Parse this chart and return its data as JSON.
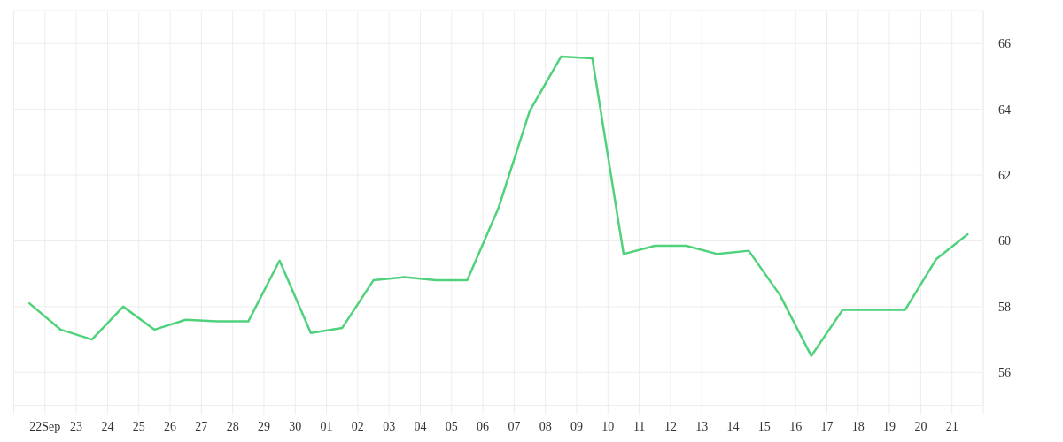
{
  "chart_data": {
    "type": "line",
    "x": [
      "--09-21T12:00",
      "--09-22T12:00",
      "--09-23T12:00",
      "--09-24T12:00",
      "--09-25T12:00",
      "--09-26T12:00",
      "--09-27T12:00",
      "--09-28T12:00",
      "--09-29T12:00",
      "--09-30T12:00",
      "--10-01T12:00",
      "--10-02T12:00",
      "--10-03T12:00",
      "--10-04T12:00",
      "--10-05T12:00",
      "--10-06T12:00",
      "--10-07T12:00",
      "--10-08T12:00",
      "--10-09T12:00",
      "--10-10T12:00",
      "--10-11T12:00",
      "--10-12T12:00",
      "--10-13T12:00",
      "--10-14T12:00",
      "--10-15T12:00",
      "--10-16T12:00",
      "--10-17T12:00",
      "--10-18T12:00",
      "--10-19T12:00",
      "--10-20T12:00",
      "--10-21T12:00"
    ],
    "values": [
      58.1,
      57.3,
      57.0,
      58.0,
      57.3,
      57.6,
      57.55,
      57.55,
      59.4,
      57.2,
      57.35,
      58.8,
      58.9,
      58.8,
      58.8,
      61.0,
      63.95,
      65.6,
      65.55,
      59.6,
      59.85,
      59.85,
      59.6,
      59.7,
      58.35,
      56.5,
      57.9,
      57.9,
      57.9,
      59.45,
      60.2
    ],
    "color": "#4fd27b",
    "xlim": [
      "--09-21",
      "--10-22"
    ],
    "ylim": [
      55,
      67
    ],
    "xticks": [
      {
        "value": "--09-21",
        "label": null
      },
      {
        "value": "--09-22",
        "label": "22Sep"
      },
      {
        "value": "--09-23",
        "label": "23"
      },
      {
        "value": "--09-24",
        "label": "24"
      },
      {
        "value": "--09-25",
        "label": "25"
      },
      {
        "value": "--09-26",
        "label": "26"
      },
      {
        "value": "--09-27",
        "label": "27"
      },
      {
        "value": "--09-28",
        "label": "28"
      },
      {
        "value": "--09-29",
        "label": "29"
      },
      {
        "value": "--09-30",
        "label": "30"
      },
      {
        "value": "--10-01",
        "label": "01"
      },
      {
        "value": "--10-02",
        "label": "02"
      },
      {
        "value": "--10-03",
        "label": "03"
      },
      {
        "value": "--10-04",
        "label": "04"
      },
      {
        "value": "--10-05",
        "label": "05"
      },
      {
        "value": "--10-06",
        "label": "06"
      },
      {
        "value": "--10-07",
        "label": "07"
      },
      {
        "value": "--10-08",
        "label": "08"
      },
      {
        "value": "--10-09",
        "label": "09"
      },
      {
        "value": "--10-10",
        "label": "10"
      },
      {
        "value": "--10-11",
        "label": "11"
      },
      {
        "value": "--10-12",
        "label": "12"
      },
      {
        "value": "--10-13",
        "label": "13"
      },
      {
        "value": "--10-14",
        "label": "14"
      },
      {
        "value": "--10-15",
        "label": "15"
      },
      {
        "value": "--10-16",
        "label": "16"
      },
      {
        "value": "--10-17",
        "label": "17"
      },
      {
        "value": "--10-18",
        "label": "18"
      },
      {
        "value": "--10-19",
        "label": "19"
      },
      {
        "value": "--10-20",
        "label": "20"
      },
      {
        "value": "--10-21",
        "label": "21"
      },
      {
        "value": "--10-22",
        "label": null
      }
    ],
    "yticks": [
      56,
      58,
      60,
      62,
      64,
      66
    ],
    "grid": true
  }
}
